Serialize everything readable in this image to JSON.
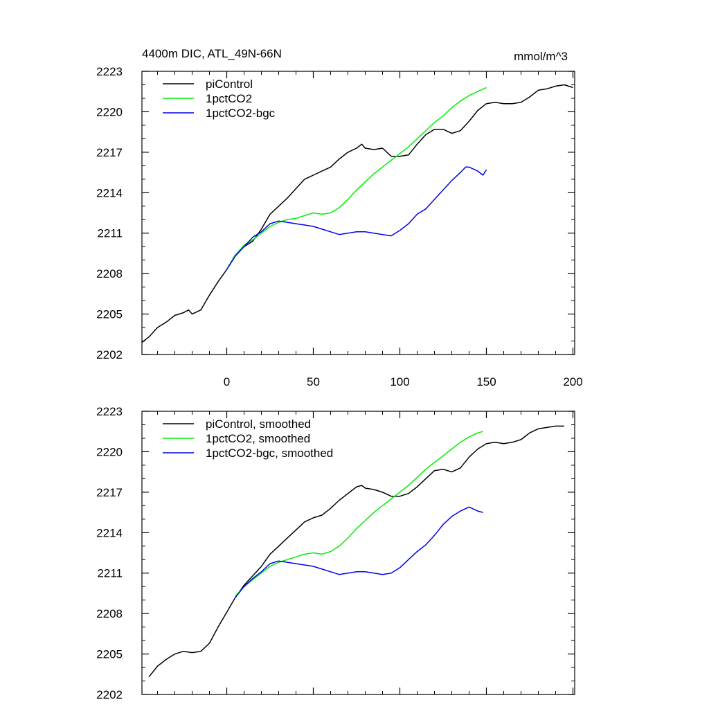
{
  "figure": {
    "title": "4400m DIC, ATL_49N-66N",
    "units": "mmol/m^3"
  },
  "chart_data": [
    {
      "type": "line",
      "panel": "top",
      "title": "4400m DIC, ATL_49N-66N",
      "units_label": "mmol/m^3",
      "xlim": [
        -49,
        201
      ],
      "ylim": [
        2202,
        2223
      ],
      "x_ticks": [
        0,
        50,
        100,
        150,
        200
      ],
      "y_ticks": [
        2202,
        2205,
        2208,
        2211,
        2214,
        2217,
        2220,
        2223
      ],
      "legend_position": "top-left",
      "series": [
        {
          "name": "piControl",
          "color": "#000000",
          "x": [
            -49,
            -45,
            -40,
            -35,
            -30,
            -25,
            -22,
            -20,
            -15,
            -10,
            -5,
            0,
            5,
            10,
            15,
            20,
            25,
            30,
            35,
            40,
            45,
            50,
            55,
            60,
            65,
            70,
            75,
            78,
            80,
            85,
            90,
            95,
            100,
            105,
            110,
            115,
            120,
            125,
            130,
            135,
            140,
            145,
            150,
            155,
            160,
            165,
            170,
            175,
            180,
            185,
            190,
            195,
            200
          ],
          "y": [
            2202.9,
            2203.3,
            2204.0,
            2204.4,
            2204.9,
            2205.1,
            2205.3,
            2205.0,
            2205.3,
            2206.4,
            2207.4,
            2208.3,
            2209.4,
            2210.0,
            2210.4,
            2211.3,
            2212.4,
            2213.0,
            2213.6,
            2214.3,
            2215.0,
            2215.3,
            2215.6,
            2215.9,
            2216.5,
            2217.0,
            2217.3,
            2217.6,
            2217.3,
            2217.2,
            2217.3,
            2216.7,
            2216.7,
            2216.8,
            2217.6,
            2218.3,
            2218.7,
            2218.7,
            2218.4,
            2218.6,
            2219.3,
            2220.1,
            2220.6,
            2220.7,
            2220.6,
            2220.6,
            2220.7,
            2221.1,
            2221.6,
            2221.7,
            2221.9,
            2222.0,
            2221.8
          ]
        },
        {
          "name": "1pctCO2",
          "color": "#00ee00",
          "x": [
            0,
            5,
            10,
            15,
            20,
            25,
            30,
            35,
            40,
            45,
            50,
            55,
            60,
            65,
            70,
            75,
            80,
            85,
            90,
            95,
            100,
            105,
            110,
            115,
            120,
            125,
            130,
            135,
            140,
            145,
            150
          ],
          "y": [
            2208.3,
            2209.4,
            2210.1,
            2210.5,
            2211.0,
            2211.5,
            2211.8,
            2212.0,
            2212.1,
            2212.3,
            2212.5,
            2212.4,
            2212.5,
            2212.9,
            2213.5,
            2214.2,
            2214.8,
            2215.4,
            2215.9,
            2216.4,
            2216.9,
            2217.4,
            2218.0,
            2218.6,
            2219.2,
            2219.7,
            2220.3,
            2220.8,
            2221.2,
            2221.5,
            2221.8
          ]
        },
        {
          "name": "1pctCO2-bgc",
          "color": "#0000ee",
          "x": [
            0,
            5,
            10,
            15,
            20,
            25,
            30,
            35,
            40,
            45,
            50,
            55,
            60,
            65,
            70,
            75,
            80,
            85,
            90,
            95,
            100,
            105,
            110,
            115,
            120,
            125,
            130,
            135,
            138,
            140,
            145,
            148,
            150
          ],
          "y": [
            2208.3,
            2209.3,
            2210.0,
            2210.7,
            2211.1,
            2211.7,
            2211.9,
            2211.8,
            2211.7,
            2211.6,
            2211.5,
            2211.3,
            2211.1,
            2210.9,
            2211.0,
            2211.1,
            2211.1,
            2211.0,
            2210.9,
            2210.8,
            2211.2,
            2211.7,
            2212.4,
            2212.8,
            2213.5,
            2214.2,
            2214.9,
            2215.5,
            2215.9,
            2215.9,
            2215.6,
            2215.3,
            2215.7
          ]
        }
      ]
    },
    {
      "type": "line",
      "panel": "bottom",
      "xlim": [
        -49,
        201
      ],
      "ylim": [
        2202,
        2223
      ],
      "x_ticks": [
        0,
        50,
        100,
        150,
        200
      ],
      "y_ticks": [
        2202,
        2205,
        2208,
        2211,
        2214,
        2217,
        2220,
        2223
      ],
      "legend_position": "top-left",
      "series": [
        {
          "name": "piControl, smoothed",
          "color": "#000000",
          "x": [
            -45,
            -40,
            -35,
            -30,
            -25,
            -20,
            -15,
            -10,
            -5,
            0,
            5,
            10,
            15,
            20,
            25,
            30,
            35,
            40,
            45,
            50,
            55,
            60,
            65,
            70,
            75,
            78,
            80,
            85,
            90,
            95,
            100,
            105,
            110,
            115,
            120,
            125,
            130,
            135,
            140,
            145,
            150,
            155,
            160,
            165,
            170,
            175,
            180,
            185,
            190,
            195
          ],
          "y": [
            2203.3,
            2204.1,
            2204.6,
            2205.0,
            2205.2,
            2205.1,
            2205.2,
            2205.8,
            2207.0,
            2208.1,
            2209.2,
            2210.1,
            2210.8,
            2211.5,
            2212.4,
            2213.0,
            2213.6,
            2214.2,
            2214.8,
            2215.1,
            2215.3,
            2215.8,
            2216.4,
            2216.9,
            2217.4,
            2217.5,
            2217.3,
            2217.2,
            2217.0,
            2216.7,
            2216.7,
            2216.9,
            2217.4,
            2218.0,
            2218.6,
            2218.7,
            2218.5,
            2218.8,
            2219.6,
            2220.2,
            2220.6,
            2220.7,
            2220.6,
            2220.7,
            2220.9,
            2221.4,
            2221.7,
            2221.8,
            2221.9,
            2221.9
          ]
        },
        {
          "name": "1pctCO2, smoothed",
          "color": "#00ee00",
          "x": [
            5,
            10,
            15,
            20,
            25,
            30,
            35,
            40,
            45,
            50,
            55,
            60,
            65,
            70,
            75,
            80,
            85,
            90,
            95,
            100,
            105,
            110,
            115,
            120,
            125,
            130,
            135,
            140,
            145,
            148
          ],
          "y": [
            2209.3,
            2210.0,
            2210.5,
            2211.0,
            2211.5,
            2211.8,
            2212.0,
            2212.2,
            2212.4,
            2212.5,
            2212.4,
            2212.6,
            2213.0,
            2213.6,
            2214.3,
            2214.9,
            2215.5,
            2216.0,
            2216.5,
            2217.0,
            2217.5,
            2218.1,
            2218.7,
            2219.2,
            2219.7,
            2220.2,
            2220.7,
            2221.1,
            2221.4,
            2221.5
          ]
        },
        {
          "name": "1pctCO2-bgc, smoothed",
          "color": "#0000ee",
          "x": [
            5,
            10,
            15,
            20,
            25,
            30,
            35,
            40,
            45,
            50,
            55,
            60,
            65,
            70,
            75,
            80,
            85,
            90,
            95,
            100,
            105,
            110,
            115,
            120,
            125,
            130,
            135,
            140,
            145,
            148
          ],
          "y": [
            2209.2,
            2210.0,
            2210.6,
            2211.1,
            2211.7,
            2211.9,
            2211.8,
            2211.7,
            2211.6,
            2211.5,
            2211.3,
            2211.1,
            2210.9,
            2211.0,
            2211.1,
            2211.1,
            2211.0,
            2210.9,
            2211.0,
            2211.4,
            2212.0,
            2212.6,
            2213.1,
            2213.8,
            2214.6,
            2215.2,
            2215.6,
            2215.9,
            2215.6,
            2215.5
          ]
        }
      ]
    }
  ]
}
